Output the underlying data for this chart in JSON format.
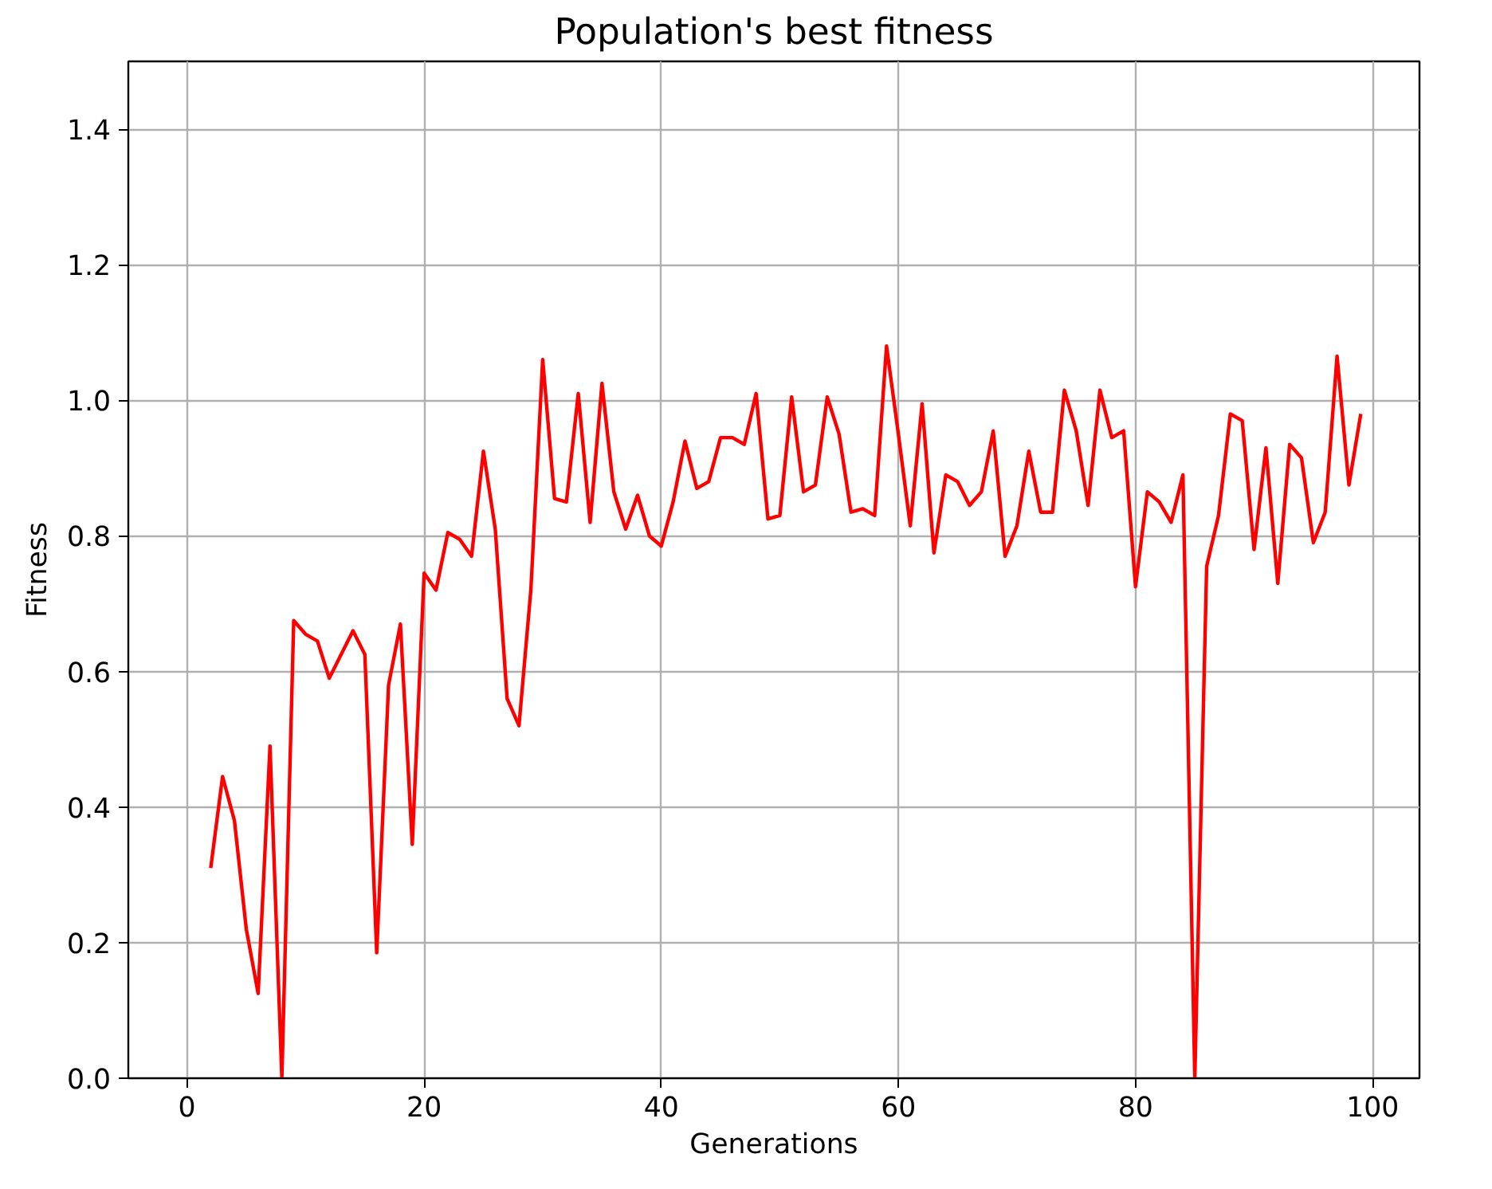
{
  "chart_data": {
    "type": "line",
    "title": "Population's best fitness",
    "xlabel": "Generations",
    "ylabel": "Fitness",
    "x": [
      2,
      3,
      4,
      5,
      6,
      7,
      8,
      9,
      10,
      11,
      12,
      13,
      14,
      15,
      16,
      17,
      18,
      19,
      20,
      21,
      22,
      23,
      24,
      25,
      26,
      27,
      28,
      29,
      30,
      31,
      32,
      33,
      34,
      35,
      36,
      37,
      38,
      39,
      40,
      41,
      42,
      43,
      44,
      45,
      46,
      47,
      48,
      49,
      50,
      51,
      52,
      53,
      54,
      55,
      56,
      57,
      58,
      59,
      60,
      61,
      62,
      63,
      64,
      65,
      66,
      67,
      68,
      69,
      70,
      71,
      72,
      73,
      74,
      75,
      76,
      77,
      78,
      79,
      80,
      81,
      82,
      83,
      84,
      85,
      86,
      87,
      88,
      89,
      90,
      91,
      92,
      93,
      94,
      95,
      96,
      97,
      98,
      99
    ],
    "series": [
      {
        "color": "#ff0000",
        "values": [
          0.31,
          0.445,
          0.38,
          0.22,
          0.125,
          0.49,
          0,
          0.675,
          0.655,
          0.645,
          0.59,
          0.625,
          0.66,
          0.625,
          0.185,
          0.58,
          0.67,
          0.345,
          0.745,
          0.72,
          0.805,
          0.795,
          0.77,
          0.925,
          0.81,
          0.56,
          0.52,
          0.72,
          1.06,
          0.855,
          0.85,
          1.01,
          0.82,
          1.025,
          0.865,
          0.81,
          0.86,
          0.8,
          0.785,
          0.85,
          0.94,
          0.87,
          0.88,
          0.945,
          0.945,
          0.935,
          1.01,
          0.825,
          0.83,
          1.005,
          0.865,
          0.875,
          1.005,
          0.95,
          0.835,
          0.84,
          0.83,
          1.08,
          0.95,
          0.815,
          0.995,
          0.775,
          0.89,
          0.88,
          0.845,
          0.865,
          0.955,
          0.77,
          0.815,
          0.925,
          0.835,
          0.835,
          1.015,
          0.955,
          0.845,
          1.015,
          0.945,
          0.955,
          0.725,
          0.865,
          0.85,
          0.82,
          0.89,
          0,
          0.755,
          0.83,
          0.98,
          0.97,
          0.78,
          0.93,
          0.73,
          0.935,
          0.915,
          0.79,
          0.835,
          1.065,
          0.875,
          0.98
        ]
      }
    ],
    "xlim": [
      -4.95,
      103.95
    ],
    "ylim": [
      0,
      1.5
    ],
    "xticks": [
      0,
      20,
      40,
      60,
      80,
      100
    ],
    "yticks": [
      {
        "value": 0,
        "label": "0.0"
      },
      {
        "value": 0.2,
        "label": "0.2"
      },
      {
        "value": 0.4,
        "label": "0.4"
      },
      {
        "value": 0.6,
        "label": "0.6"
      },
      {
        "value": 0.8,
        "label": "0.8"
      },
      {
        "value": 1.0,
        "label": "1.0"
      },
      {
        "value": 1.2,
        "label": "1.2"
      },
      {
        "value": 1.4,
        "label": "1.4"
      }
    ],
    "grid": true
  }
}
